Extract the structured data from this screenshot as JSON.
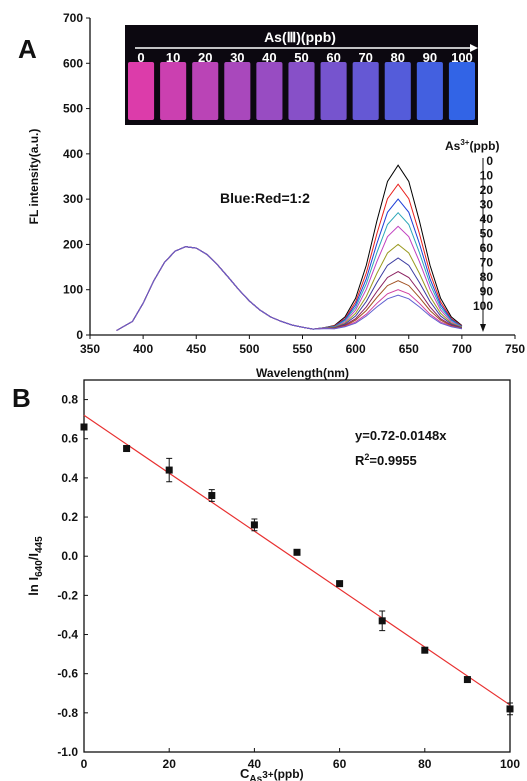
{
  "chart_data": [
    {
      "type": "line",
      "panel_label": "A",
      "xlabel": "Wavelength(nm)",
      "ylabel": "FL intensity(a.u.)",
      "annotation": "Blue:Red=1:2",
      "legend_title": [
        "As",
        "3+",
        "(ppb)"
      ],
      "inset": {
        "title": "As(Ⅲ)(ppb)",
        "labels": [
          "0",
          "10",
          "20",
          "30",
          "40",
          "50",
          "60",
          "70",
          "80",
          "90",
          "100"
        ]
      },
      "xlim": [
        350,
        750
      ],
      "xticks": [
        350,
        400,
        450,
        500,
        550,
        600,
        650,
        700,
        750
      ],
      "ylim": [
        0,
        700
      ],
      "yticks": [
        0,
        100,
        200,
        300,
        400,
        500,
        600,
        700
      ],
      "x": [
        375,
        390,
        400,
        410,
        420,
        430,
        440,
        450,
        460,
        470,
        480,
        490,
        500,
        510,
        520,
        530,
        540,
        550,
        560,
        570,
        580,
        590,
        600,
        610,
        620,
        630,
        640,
        650,
        660,
        670,
        680,
        690,
        700
      ],
      "series": [
        {
          "name": "0",
          "color": "#000000",
          "values": [
            10,
            30,
            70,
            120,
            160,
            185,
            195,
            192,
            178,
            155,
            128,
            100,
            75,
            55,
            40,
            30,
            22,
            17,
            13,
            16,
            21,
            40,
            81,
            154,
            252,
            339,
            375,
            339,
            252,
            154,
            81,
            40,
            21
          ]
        },
        {
          "name": "10",
          "color": "#e8201c",
          "values": [
            10,
            30,
            70,
            120,
            160,
            185,
            195,
            192,
            178,
            155,
            128,
            100,
            75,
            55,
            40,
            30,
            22,
            17,
            13,
            16,
            20,
            36,
            73,
            137,
            224,
            301,
            333,
            301,
            224,
            137,
            73,
            36,
            20
          ]
        },
        {
          "name": "20",
          "color": "#1f3fd8",
          "values": [
            10,
            30,
            70,
            120,
            160,
            185,
            195,
            192,
            178,
            155,
            128,
            100,
            75,
            55,
            40,
            30,
            22,
            17,
            13,
            16,
            19,
            34,
            67,
            124,
            202,
            271,
            300,
            271,
            202,
            124,
            67,
            34,
            19
          ]
        },
        {
          "name": "30",
          "color": "#2aa6b8",
          "values": [
            10,
            30,
            70,
            120,
            160,
            185,
            195,
            192,
            178,
            155,
            128,
            100,
            75,
            55,
            40,
            30,
            22,
            17,
            13,
            16,
            18,
            32,
            61,
            113,
            182,
            244,
            270,
            244,
            182,
            113,
            61,
            32,
            18
          ]
        },
        {
          "name": "40",
          "color": "#c040c0",
          "values": [
            10,
            30,
            70,
            120,
            160,
            185,
            195,
            192,
            178,
            155,
            128,
            100,
            75,
            55,
            40,
            30,
            22,
            17,
            13,
            15,
            17,
            29,
            55,
            101,
            162,
            217,
            240,
            217,
            162,
            101,
            55,
            29,
            17
          ]
        },
        {
          "name": "50",
          "color": "#9a9a20",
          "values": [
            10,
            30,
            70,
            120,
            160,
            185,
            195,
            192,
            178,
            155,
            128,
            100,
            75,
            55,
            40,
            30,
            22,
            17,
            13,
            15,
            17,
            26,
            48,
            85,
            136,
            181,
            200,
            181,
            136,
            85,
            48,
            26,
            17
          ]
        },
        {
          "name": "60",
          "color": "#3a3aa0",
          "values": [
            10,
            30,
            70,
            120,
            160,
            185,
            195,
            192,
            178,
            155,
            128,
            100,
            75,
            55,
            40,
            30,
            22,
            17,
            13,
            15,
            16,
            24,
            42,
            74,
            116,
            154,
            170,
            154,
            116,
            74,
            42,
            24,
            16
          ]
        },
        {
          "name": "70",
          "color": "#8a2060",
          "values": [
            10,
            30,
            70,
            120,
            160,
            185,
            195,
            192,
            178,
            155,
            128,
            100,
            75,
            55,
            40,
            30,
            22,
            17,
            13,
            15,
            15,
            22,
            36,
            62,
            96,
            127,
            140,
            127,
            96,
            62,
            36,
            22,
            15
          ]
        },
        {
          "name": "80",
          "color": "#a05020",
          "values": [
            10,
            30,
            70,
            120,
            160,
            185,
            195,
            192,
            178,
            155,
            128,
            100,
            75,
            55,
            40,
            30,
            22,
            17,
            13,
            15,
            15,
            20,
            33,
            54,
            83,
            109,
            120,
            109,
            83,
            54,
            33,
            20,
            15
          ]
        },
        {
          "name": "90",
          "color": "#d040a0",
          "values": [
            10,
            30,
            70,
            120,
            160,
            185,
            195,
            192,
            178,
            155,
            128,
            100,
            75,
            55,
            40,
            30,
            22,
            17,
            13,
            15,
            14,
            19,
            29,
            46,
            70,
            91,
            100,
            91,
            70,
            46,
            29,
            19,
            14
          ]
        },
        {
          "name": "100",
          "color": "#6060d0",
          "values": [
            10,
            30,
            70,
            120,
            160,
            185,
            195,
            192,
            178,
            155,
            128,
            100,
            75,
            55,
            40,
            30,
            22,
            17,
            13,
            14,
            14,
            18,
            26,
            42,
            62,
            80,
            88,
            80,
            62,
            42,
            26,
            18,
            14
          ]
        }
      ]
    },
    {
      "type": "scatter",
      "panel_label": "B",
      "xlabel": [
        "C",
        "As",
        "3+",
        "(ppb)"
      ],
      "ylabel": [
        "ln I",
        "640",
        "/I",
        "445"
      ],
      "equation": "y=0.72-0.0148x",
      "r2": [
        "R",
        "2",
        "=0.9955"
      ],
      "xlim": [
        0,
        100
      ],
      "xticks": [
        0,
        20,
        40,
        60,
        80,
        100
      ],
      "ylim": [
        -1.0,
        0.9
      ],
      "yticks": [
        {
          "value": -1.0,
          "label": "-1.0"
        },
        -0.8,
        -0.6,
        -0.4,
        -0.2,
        {
          "value": 0,
          "label": "0.0"
        },
        0.2,
        0.4,
        0.6,
        0.8
      ],
      "color": "#111111",
      "x": [
        0,
        10,
        20,
        30,
        40,
        50,
        60,
        70,
        80,
        90,
        100
      ],
      "values": [
        0.66,
        0.55,
        0.44,
        0.31,
        0.16,
        0.02,
        -0.14,
        -0.33,
        -0.48,
        -0.63,
        -0.78
      ],
      "errors": [
        0.01,
        0.01,
        0.06,
        0.03,
        0.03,
        0.01,
        0.01,
        0.05,
        0.01,
        0.01,
        0.03
      ],
      "fit": {
        "color": "#e83030",
        "x": [
          0,
          100
        ],
        "values": [
          0.72,
          -0.76
        ]
      }
    }
  ]
}
